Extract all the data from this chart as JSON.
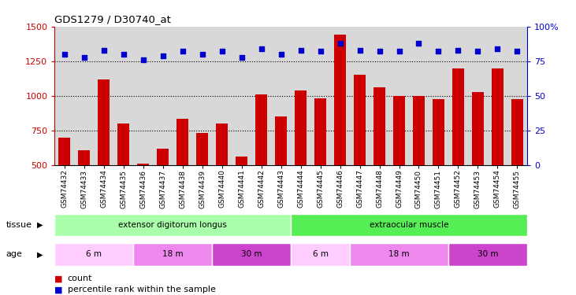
{
  "title": "GDS1279 / D30740_at",
  "samples": [
    "GSM74432",
    "GSM74433",
    "GSM74434",
    "GSM74435",
    "GSM74436",
    "GSM74437",
    "GSM74438",
    "GSM74439",
    "GSM74440",
    "GSM74441",
    "GSM74442",
    "GSM74443",
    "GSM74444",
    "GSM74445",
    "GSM74446",
    "GSM74447",
    "GSM74448",
    "GSM74449",
    "GSM74450",
    "GSM74451",
    "GSM74452",
    "GSM74453",
    "GSM74454",
    "GSM74455"
  ],
  "counts": [
    700,
    610,
    1120,
    800,
    510,
    620,
    835,
    730,
    800,
    560,
    1010,
    850,
    1040,
    980,
    1440,
    1150,
    1060,
    1000,
    1000,
    975,
    1200,
    1030,
    1200,
    975
  ],
  "percentiles": [
    80,
    78,
    83,
    80,
    76,
    79,
    82,
    80,
    82,
    78,
    84,
    80,
    83,
    82,
    88,
    83,
    82,
    82,
    88,
    82,
    83,
    82,
    84,
    82
  ],
  "bar_color": "#cc0000",
  "dot_color": "#0000cc",
  "ylim_left": [
    500,
    1500
  ],
  "ylim_right": [
    0,
    100
  ],
  "yticks_left": [
    500,
    750,
    1000,
    1250,
    1500
  ],
  "yticks_right": [
    0,
    25,
    50,
    75,
    100
  ],
  "gridlines": [
    750,
    1000,
    1250
  ],
  "tissue_groups": [
    {
      "label": "extensor digitorum longus",
      "start": 0,
      "end": 12,
      "color": "#aaffaa"
    },
    {
      "label": "extraocular muscle",
      "start": 12,
      "end": 24,
      "color": "#55ee55"
    }
  ],
  "age_groups": [
    {
      "label": "6 m",
      "start": 0,
      "end": 4,
      "color": "#ffccff"
    },
    {
      "label": "18 m",
      "start": 4,
      "end": 8,
      "color": "#ee88ee"
    },
    {
      "label": "30 m",
      "start": 8,
      "end": 12,
      "color": "#cc44cc"
    },
    {
      "label": "6 m",
      "start": 12,
      "end": 15,
      "color": "#ffccff"
    },
    {
      "label": "18 m",
      "start": 15,
      "end": 20,
      "color": "#ee88ee"
    },
    {
      "label": "30 m",
      "start": 20,
      "end": 24,
      "color": "#cc44cc"
    }
  ],
  "bg_color": "#d8d8d8",
  "xlabel_color": "#cc0000",
  "ylabel_right_color": "#0000cc"
}
